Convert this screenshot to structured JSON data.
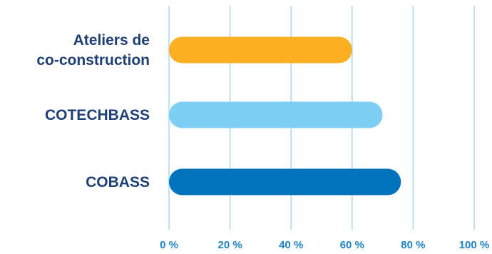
{
  "chart_data": {
    "type": "bar",
    "orientation": "horizontal",
    "categories": [
      [
        "Ateliers de",
        "co-construction"
      ],
      [
        "COTECHBASS"
      ],
      [
        "COBASS"
      ]
    ],
    "values": [
      60,
      70,
      76
    ],
    "bar_colors": [
      "#fbb021",
      "#7fcff5",
      "#0073bd"
    ],
    "xlim": [
      0,
      100
    ],
    "xticks": [
      0,
      20,
      40,
      60,
      80,
      100
    ],
    "tick_labels": [
      "0 %",
      "20 %",
      "40 %",
      "60 %",
      "80 %",
      "100 %"
    ],
    "grid": true,
    "title": "",
    "xlabel": "",
    "ylabel": ""
  }
}
